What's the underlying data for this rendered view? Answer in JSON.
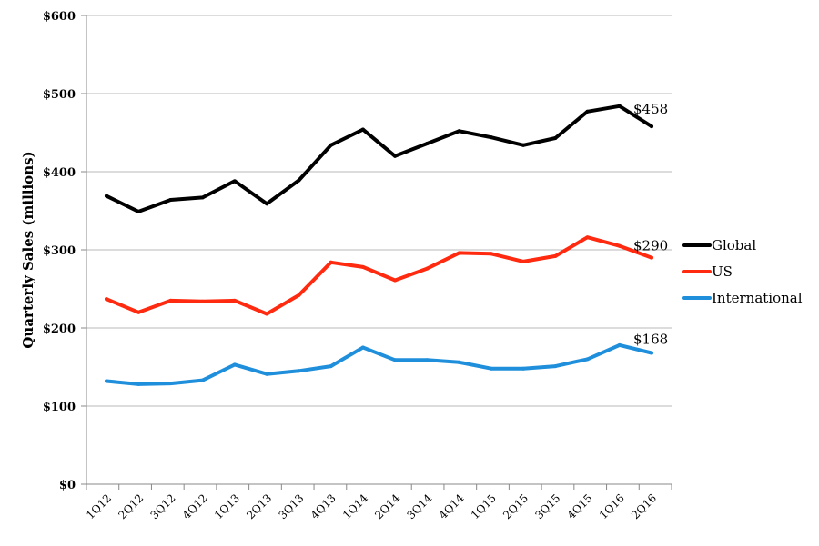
{
  "chart_data": {
    "type": "line",
    "title": "",
    "xlabel": "",
    "ylabel": "Quarterly Sales (millions)",
    "ylim": [
      0,
      600
    ],
    "y_ticks": [
      "$0",
      "$100",
      "$200",
      "$300",
      "$400",
      "$500",
      "$600"
    ],
    "y_tick_values": [
      0,
      100,
      200,
      300,
      400,
      500,
      600
    ],
    "grid": true,
    "legend_position": "right",
    "categories": [
      "1Q12",
      "2Q12",
      "3Q12",
      "4Q12",
      "1Q13",
      "2Q13",
      "3Q13",
      "4Q13",
      "1Q14",
      "2Q14",
      "3Q14",
      "4Q14",
      "1Q15",
      "2Q15",
      "3Q15",
      "4Q15",
      "1Q16",
      "2Q16"
    ],
    "series": [
      {
        "name": "Global",
        "color": "#000000",
        "values": [
          369,
          349,
          364,
          367,
          388,
          359,
          389,
          434,
          454,
          420,
          436,
          452,
          444,
          434,
          443,
          477,
          484,
          458
        ],
        "end_label": "$458"
      },
      {
        "name": "US",
        "color": "#ff2a0f",
        "values": [
          237,
          220,
          235,
          234,
          235,
          218,
          242,
          284,
          278,
          261,
          276,
          296,
          295,
          285,
          292,
          316,
          305,
          290
        ],
        "end_label": "$290"
      },
      {
        "name": "International",
        "color": "#1f8fdc",
        "values": [
          132,
          128,
          129,
          133,
          153,
          141,
          145,
          151,
          175,
          159,
          159,
          156,
          148,
          148,
          151,
          160,
          178,
          168
        ],
        "end_label": "$168"
      }
    ]
  }
}
